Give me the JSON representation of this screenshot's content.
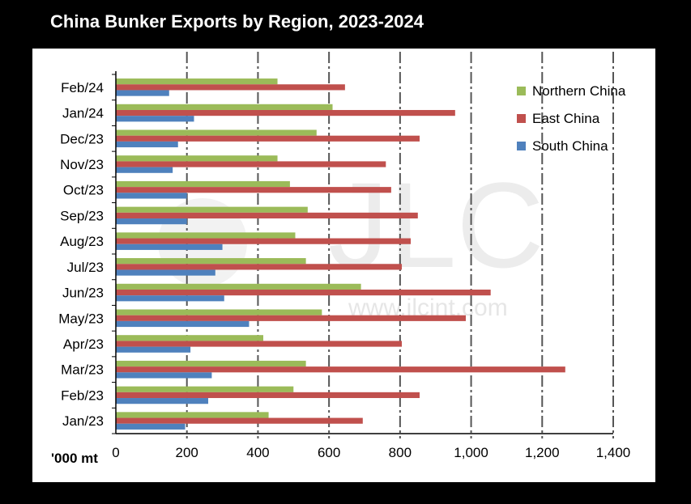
{
  "chart_data": {
    "type": "bar",
    "orientation": "horizontal",
    "title": "China Bunker Exports by Region, 2023-2024",
    "xlabel": "'000 mt",
    "ylabel": "",
    "categories": [
      "Jan/23",
      "Feb/23",
      "Mar/23",
      "Apr/23",
      "May/23",
      "Jun/23",
      "Jul/23",
      "Aug/23",
      "Sep/23",
      "Oct/23",
      "Nov/23",
      "Dec/23",
      "Jan/24",
      "Feb/24"
    ],
    "series": [
      {
        "name": "Northern China",
        "color": "#9bbb59",
        "values": [
          430,
          500,
          535,
          415,
          580,
          690,
          535,
          505,
          540,
          490,
          455,
          565,
          610,
          455
        ]
      },
      {
        "name": "East China",
        "color": "#c0504d",
        "values": [
          695,
          855,
          1265,
          805,
          985,
          1055,
          805,
          830,
          850,
          775,
          760,
          855,
          955,
          645
        ]
      },
      {
        "name": "South China",
        "color": "#4f81bd",
        "values": [
          195,
          260,
          270,
          210,
          375,
          305,
          280,
          300,
          200,
          200,
          160,
          175,
          220,
          150
        ]
      }
    ],
    "xlim": [
      0,
      1400
    ],
    "xticks": [
      "0",
      "200",
      "400",
      "600",
      "800",
      "1,000",
      "1,200",
      "1,400"
    ],
    "grid": "vertical dash-dot",
    "legend_position": "top-right",
    "watermark": {
      "logo": "JLC",
      "url": "www.jlcint.com"
    }
  }
}
